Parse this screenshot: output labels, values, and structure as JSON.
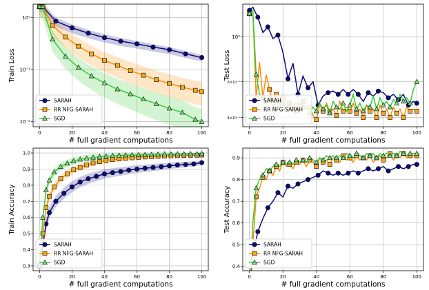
{
  "colors": {
    "sarah": "#0b0b7a",
    "rr": "#ff8c00",
    "sgd": "#33cc33",
    "marker_rr": "#f5a623",
    "marker_sgd": "#7fd97f"
  },
  "chart_data": [
    {
      "type": "line",
      "xlabel": "# full gradient computations",
      "ylabel": "Train Loss",
      "yscale": "log",
      "ylim": [
        0.008,
        1.8
      ],
      "xlim": [
        -4,
        104
      ],
      "xticks": [
        0,
        20,
        40,
        60,
        80,
        100
      ],
      "yticks": [
        1,
        0.1,
        0.01
      ],
      "ytick_labels": [
        "10⁰",
        "10⁻¹",
        "10⁻²"
      ],
      "legend": [
        "SARAH",
        "RR NFG-SARAH",
        "SGD"
      ],
      "legend_loc": "lower left",
      "grid": true,
      "series": [
        {
          "name": "SARAH",
          "x": [
            0,
            2,
            10,
            20,
            30,
            40,
            50,
            60,
            70,
            80,
            90,
            100
          ],
          "y": [
            1.6,
            1.6,
            0.85,
            0.63,
            0.5,
            0.41,
            0.35,
            0.31,
            0.27,
            0.24,
            0.2,
            0.17
          ],
          "band": [
            0.18,
            0.12
          ],
          "markers": "circle"
        },
        {
          "name": "RR NFG-SARAH",
          "x": [
            0,
            2,
            8,
            16,
            24,
            32,
            40,
            48,
            56,
            64,
            72,
            80,
            88,
            96,
            100
          ],
          "y": [
            1.6,
            1.6,
            0.7,
            0.42,
            0.28,
            0.2,
            0.15,
            0.12,
            0.095,
            0.078,
            0.064,
            0.054,
            0.046,
            0.04,
            0.038
          ],
          "band": [
            0.35,
            0.55
          ],
          "markers": "square"
        },
        {
          "name": "SGD",
          "x": [
            0,
            2,
            8,
            16,
            24,
            32,
            40,
            48,
            56,
            64,
            72,
            80,
            88,
            96,
            100
          ],
          "y": [
            1.6,
            1.6,
            0.38,
            0.18,
            0.11,
            0.075,
            0.055,
            0.042,
            0.034,
            0.027,
            0.022,
            0.018,
            0.015,
            0.011,
            0.01
          ],
          "band": [
            0.4,
            0.75
          ],
          "markers": "triangle"
        }
      ]
    },
    {
      "type": "line",
      "xlabel": "# full gradient computations",
      "ylabel": "Test Loss",
      "yscale": "log",
      "ylim": [
        0.36,
        1.45
      ],
      "xlim": [
        -4,
        104
      ],
      "xticks": [
        0,
        20,
        40,
        60,
        80,
        100
      ],
      "yticks": [
        1,
        0.6,
        0.4
      ],
      "ytick_labels": [
        "10⁰",
        "6×10⁻¹",
        "4×10⁻¹"
      ],
      "legend": [
        "SARAH",
        "RR NFG-SARAH",
        "SGD"
      ],
      "legend_loc": "lower left",
      "grid": true,
      "series": [
        {
          "name": "SARAH",
          "x": [
            0,
            2,
            5,
            8,
            11,
            14,
            17,
            20,
            23,
            26,
            29,
            32,
            35,
            38,
            41,
            44,
            47,
            50,
            53,
            56,
            59,
            62,
            65,
            68,
            71,
            74,
            77,
            80,
            83,
            86,
            89,
            92,
            95,
            98,
            100
          ],
          "y": [
            1.35,
            1.4,
            1.25,
            1.05,
            1.12,
            0.98,
            1.02,
            0.84,
            0.62,
            0.74,
            0.52,
            0.64,
            0.56,
            0.6,
            0.46,
            0.51,
            0.53,
            0.54,
            0.52,
            0.55,
            0.52,
            0.55,
            0.52,
            0.48,
            0.53,
            0.51,
            0.54,
            0.53,
            0.5,
            0.52,
            0.49,
            0.52,
            0.46,
            0.48,
            0.47
          ],
          "markers": "circle"
        },
        {
          "name": "RR NFG-SARAH",
          "x": [
            0,
            2,
            4,
            6,
            8,
            10,
            12,
            14,
            16,
            18,
            20,
            22,
            24,
            26,
            28,
            30,
            32,
            34,
            36,
            38,
            40,
            42,
            44,
            46,
            48,
            50,
            52,
            54,
            56,
            58,
            60,
            62,
            64,
            66,
            68,
            70,
            72,
            74,
            76,
            78,
            80,
            82,
            84,
            86,
            88,
            90,
            92,
            94,
            96,
            98,
            100
          ],
          "y": [
            1.3,
            1.3,
            0.5,
            0.75,
            0.5,
            0.65,
            0.55,
            0.48,
            0.52,
            0.45,
            0.5,
            0.44,
            0.47,
            0.43,
            0.46,
            0.42,
            0.48,
            0.44,
            0.45,
            0.41,
            0.39,
            0.46,
            0.43,
            0.47,
            0.43,
            0.44,
            0.41,
            0.48,
            0.43,
            0.45,
            0.43,
            0.47,
            0.42,
            0.44,
            0.4,
            0.46,
            0.43,
            0.44,
            0.4,
            0.46,
            0.42,
            0.44,
            0.4,
            0.45,
            0.42,
            0.44,
            0.4,
            0.45,
            0.43,
            0.44,
            0.43
          ],
          "markers": "square"
        },
        {
          "name": "SGD",
          "x": [
            0,
            2,
            4,
            6,
            8,
            10,
            12,
            14,
            16,
            18,
            20,
            22,
            24,
            26,
            28,
            30,
            32,
            34,
            36,
            38,
            40,
            42,
            44,
            46,
            48,
            50,
            52,
            54,
            56,
            58,
            60,
            62,
            64,
            66,
            68,
            70,
            72,
            74,
            76,
            78,
            80,
            82,
            84,
            86,
            88,
            90,
            92,
            94,
            96,
            98,
            100
          ],
          "y": [
            1.3,
            1.35,
            0.65,
            0.52,
            0.5,
            0.47,
            0.5,
            0.45,
            0.48,
            0.46,
            0.47,
            0.44,
            0.46,
            0.45,
            0.43,
            0.47,
            0.45,
            0.44,
            0.42,
            0.45,
            0.43,
            0.47,
            0.44,
            0.46,
            0.42,
            0.48,
            0.45,
            0.44,
            0.47,
            0.43,
            0.46,
            0.52,
            0.44,
            0.47,
            0.43,
            0.46,
            0.45,
            0.51,
            0.44,
            0.5,
            0.46,
            0.48,
            0.45,
            0.49,
            0.47,
            0.52,
            0.48,
            0.5,
            0.47,
            0.55,
            0.6
          ],
          "markers": "triangle"
        }
      ]
    },
    {
      "type": "line",
      "xlabel": "# full gradient computations",
      "ylabel": "Train Accuracy",
      "ylim": [
        0.27,
        1.03
      ],
      "xlim": [
        -4,
        104
      ],
      "xticks": [
        0,
        20,
        40,
        60,
        80,
        100
      ],
      "yticks": [
        0.3,
        0.4,
        0.5,
        0.6,
        0.7,
        0.8,
        0.9,
        1.0
      ],
      "ytick_labels": [
        "0.3",
        "0.4",
        "0.5",
        "0.6",
        "0.7",
        "0.8",
        "0.9",
        "1.0"
      ],
      "legend": [
        "SARAH",
        "RR NFG-SARAH",
        "SGD"
      ],
      "legend_loc": "lower left",
      "grid": true,
      "series": [
        {
          "name": "SARAH",
          "x": [
            0,
            2,
            4,
            6,
            10,
            15,
            20,
            25,
            30,
            35,
            40,
            45,
            50,
            55,
            60,
            65,
            70,
            75,
            80,
            85,
            90,
            95,
            100
          ],
          "y": [
            0.3,
            0.43,
            0.56,
            0.63,
            0.7,
            0.75,
            0.79,
            0.82,
            0.84,
            0.855,
            0.87,
            0.878,
            0.885,
            0.893,
            0.9,
            0.905,
            0.91,
            0.915,
            0.92,
            0.925,
            0.928,
            0.932,
            0.94
          ],
          "band": [
            0.04,
            0.015
          ],
          "markers": "circle"
        },
        {
          "name": "RR NFG-SARAH",
          "x": [
            0,
            2,
            4,
            6,
            9,
            13,
            17,
            21,
            25,
            29,
            33,
            37,
            41,
            45,
            49,
            53,
            57,
            61,
            65,
            69,
            73,
            77,
            81,
            85,
            89,
            93,
            97,
            100
          ],
          "y": [
            0.3,
            0.5,
            0.66,
            0.73,
            0.79,
            0.84,
            0.87,
            0.895,
            0.91,
            0.925,
            0.937,
            0.946,
            0.953,
            0.959,
            0.963,
            0.967,
            0.97,
            0.973,
            0.975,
            0.977,
            0.979,
            0.98,
            0.982,
            0.983,
            0.984,
            0.985,
            0.986,
            0.987
          ],
          "band": [
            0.03,
            0.005
          ],
          "markers": "square"
        },
        {
          "name": "SGD",
          "x": [
            0,
            2,
            4,
            6,
            9,
            13,
            17,
            21,
            25,
            29,
            33,
            37,
            41,
            45,
            49,
            53,
            57,
            61,
            65,
            69,
            73,
            77,
            81,
            85,
            89,
            93,
            97,
            100
          ],
          "y": [
            0.3,
            0.6,
            0.77,
            0.83,
            0.88,
            0.915,
            0.935,
            0.95,
            0.96,
            0.967,
            0.972,
            0.976,
            0.979,
            0.982,
            0.984,
            0.986,
            0.987,
            0.988,
            0.989,
            0.99,
            0.991,
            0.992,
            0.992,
            0.993,
            0.993,
            0.994,
            0.994,
            0.995
          ],
          "band": [
            0.03,
            0.004
          ],
          "markers": "triangle"
        }
      ]
    },
    {
      "type": "line",
      "xlabel": "# full gradient computations",
      "ylabel": "Test Accuracy",
      "ylim": [
        0.38,
        0.945
      ],
      "xlim": [
        -4,
        104
      ],
      "xticks": [
        0,
        20,
        40,
        60,
        80,
        100
      ],
      "yticks": [
        0.4,
        0.5,
        0.6,
        0.7,
        0.8,
        0.9
      ],
      "ytick_labels": [
        "0.4",
        "0.5",
        "0.6",
        "0.7",
        "0.8",
        "0.9"
      ],
      "legend": [
        "SARAH",
        "RR NFG-SARAH",
        "SGD"
      ],
      "legend_loc": "lower left",
      "grid": true,
      "series": [
        {
          "name": "SARAH",
          "x": [
            0,
            2,
            5,
            8,
            11,
            14,
            17,
            20,
            23,
            26,
            29,
            32,
            35,
            38,
            41,
            44,
            47,
            50,
            53,
            56,
            59,
            62,
            65,
            68,
            71,
            74,
            77,
            80,
            83,
            86,
            89,
            92,
            95,
            98,
            100
          ],
          "y": [
            0.3,
            0.45,
            0.56,
            0.62,
            0.67,
            0.7,
            0.74,
            0.72,
            0.77,
            0.76,
            0.78,
            0.79,
            0.8,
            0.81,
            0.82,
            0.84,
            0.83,
            0.82,
            0.83,
            0.82,
            0.83,
            0.84,
            0.83,
            0.84,
            0.85,
            0.84,
            0.85,
            0.86,
            0.84,
            0.85,
            0.86,
            0.85,
            0.86,
            0.87,
            0.87
          ],
          "markers": "circle"
        },
        {
          "name": "RR NFG-SARAH",
          "x": [
            0,
            2,
            4,
            6,
            8,
            10,
            12,
            14,
            16,
            18,
            20,
            22,
            24,
            26,
            28,
            30,
            32,
            34,
            36,
            38,
            40,
            42,
            44,
            46,
            48,
            50,
            52,
            54,
            56,
            58,
            60,
            62,
            64,
            66,
            68,
            70,
            72,
            74,
            76,
            78,
            80,
            82,
            84,
            86,
            88,
            90,
            92,
            94,
            96,
            98,
            100
          ],
          "y": [
            0.3,
            0.5,
            0.72,
            0.76,
            0.81,
            0.8,
            0.84,
            0.82,
            0.86,
            0.84,
            0.88,
            0.86,
            0.87,
            0.85,
            0.88,
            0.87,
            0.89,
            0.86,
            0.89,
            0.88,
            0.86,
            0.9,
            0.88,
            0.89,
            0.87,
            0.9,
            0.89,
            0.88,
            0.91,
            0.89,
            0.9,
            0.88,
            0.91,
            0.89,
            0.9,
            0.89,
            0.91,
            0.88,
            0.9,
            0.91,
            0.89,
            0.9,
            0.92,
            0.89,
            0.91,
            0.9,
            0.92,
            0.9,
            0.91,
            0.91,
            0.91
          ],
          "markers": "square"
        },
        {
          "name": "SGD",
          "x": [
            0,
            2,
            4,
            6,
            8,
            10,
            12,
            14,
            16,
            18,
            20,
            22,
            24,
            26,
            28,
            30,
            32,
            34,
            36,
            38,
            40,
            42,
            44,
            46,
            48,
            50,
            52,
            54,
            56,
            58,
            60,
            62,
            64,
            66,
            68,
            70,
            72,
            74,
            76,
            78,
            80,
            82,
            84,
            86,
            88,
            90,
            92,
            94,
            96,
            98,
            100
          ],
          "y": [
            0.3,
            0.6,
            0.76,
            0.8,
            0.82,
            0.85,
            0.84,
            0.86,
            0.87,
            0.86,
            0.88,
            0.87,
            0.88,
            0.87,
            0.89,
            0.88,
            0.89,
            0.88,
            0.9,
            0.89,
            0.88,
            0.9,
            0.89,
            0.91,
            0.9,
            0.91,
            0.9,
            0.91,
            0.9,
            0.92,
            0.91,
            0.9,
            0.92,
            0.91,
            0.9,
            0.92,
            0.91,
            0.92,
            0.9,
            0.92,
            0.91,
            0.92,
            0.91,
            0.92,
            0.91,
            0.93,
            0.92,
            0.91,
            0.92,
            0.92,
            0.92
          ],
          "markers": "triangle"
        }
      ]
    }
  ]
}
